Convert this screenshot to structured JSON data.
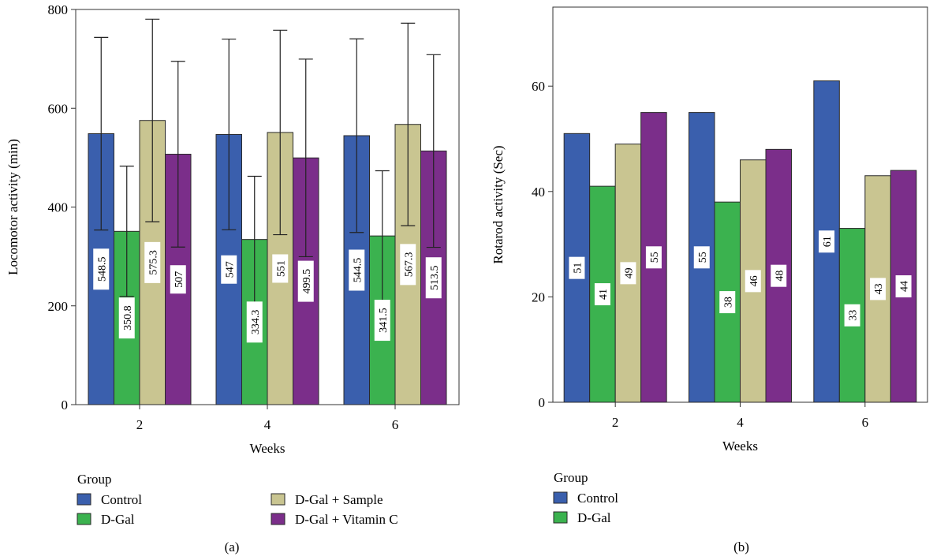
{
  "chart_data": [
    {
      "type": "bar",
      "panel_label": "(a)",
      "xlabel": "Weeks",
      "ylabel": "Locomotor activity (min)",
      "categories": [
        "2",
        "4",
        "6"
      ],
      "ylim": [
        0,
        800
      ],
      "yticks": [
        0,
        200,
        400,
        600,
        800
      ],
      "grid": false,
      "legend_title": "Group",
      "legend_position": "bottom",
      "series": [
        {
          "name": "Control",
          "color": "#3a5fad",
          "values": [
            548.5,
            547,
            544.5
          ],
          "labels": [
            "548.5",
            "547",
            "544.5"
          ],
          "error": [
            195,
            193,
            196
          ]
        },
        {
          "name": "D-Gal",
          "color": "#3bb24f",
          "values": [
            350.8,
            334.3,
            341.5
          ],
          "labels": [
            "350.8",
            "334.3",
            "341.5"
          ],
          "error": [
            132,
            128,
            132
          ]
        },
        {
          "name": "D-Gal + Sample",
          "color": "#c9c591",
          "values": [
            575.3,
            551,
            567.3
          ],
          "labels": [
            "575.3",
            "551",
            "567.3"
          ],
          "error": [
            205,
            207,
            205
          ]
        },
        {
          "name": "D-Gal + Vitamin C",
          "color": "#7b2e8a",
          "values": [
            507,
            499.5,
            513.5
          ],
          "labels": [
            "507",
            "499.5",
            "513.5"
          ],
          "error": [
            188,
            200,
            195
          ]
        }
      ]
    },
    {
      "type": "bar",
      "panel_label": "(b)",
      "xlabel": "Weeks",
      "ylabel": "Rotarod activity (Sec)",
      "categories": [
        "2",
        "4",
        "6"
      ],
      "ylim": [
        0,
        75
      ],
      "yticks": [
        0,
        20,
        40,
        60
      ],
      "grid": false,
      "legend_title": "Group",
      "legend_position": "bottom",
      "series": [
        {
          "name": "Control",
          "color": "#3a5fad",
          "values": [
            51,
            55,
            61
          ],
          "labels": [
            "51",
            "55",
            "61"
          ]
        },
        {
          "name": "D-Gal",
          "color": "#3bb24f",
          "values": [
            41,
            38,
            33
          ],
          "labels": [
            "41",
            "38",
            "33"
          ]
        },
        {
          "name": "D-Gal + Sample",
          "color": "#c9c591",
          "values": [
            49,
            46,
            43
          ],
          "labels": [
            "49",
            "46",
            "43"
          ]
        },
        {
          "name": "D-Gal + Vitamin C",
          "color": "#7b2e8a",
          "values": [
            55,
            48,
            44
          ],
          "labels": [
            "55",
            "48",
            "44"
          ]
        }
      ]
    }
  ]
}
